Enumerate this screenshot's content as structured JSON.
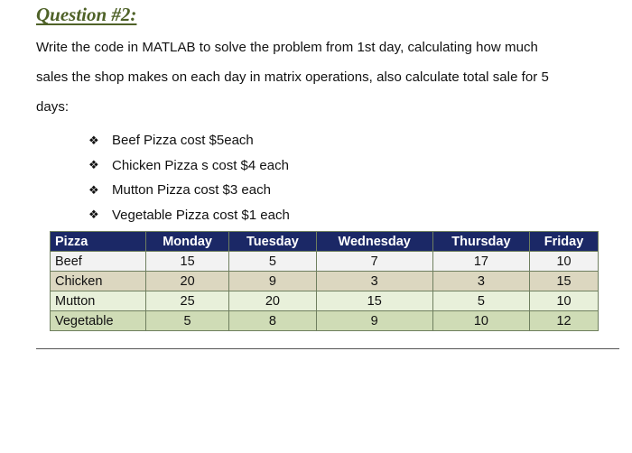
{
  "heading": "Question #2:",
  "paragraph": {
    "line1": "Write the code in MATLAB to solve the problem from 1st day, calculating how much",
    "line2": "sales the shop makes on each day in matrix operations, also calculate total sale for 5",
    "line3": "days:"
  },
  "bullet_icon": "diamond-star-bullet-icon",
  "bullets": [
    "Beef Pizza cost $5each",
    "Chicken Pizza s cost $4 each",
    "Mutton Pizza cost $3 each",
    "Vegetable Pizza cost $1 each"
  ],
  "table": {
    "headers": [
      "Pizza",
      "Monday",
      "Tuesday",
      "Wednesday",
      "Thursday",
      "Friday"
    ],
    "rows": [
      [
        "Beef",
        "15",
        "5",
        "7",
        "17",
        "10"
      ],
      [
        "Chicken",
        "20",
        "9",
        "3",
        "3",
        "15"
      ],
      [
        "Mutton",
        "25",
        "20",
        "15",
        "5",
        "10"
      ],
      [
        "Vegetable",
        "5",
        "8",
        "9",
        "10",
        "12"
      ]
    ]
  },
  "colors": {
    "heading": "#4f6228",
    "header_bg": "#1b2866",
    "row_colors": [
      "#f2f2f2",
      "#dcd7c0",
      "#e8f0da",
      "#cfdcb6"
    ]
  }
}
